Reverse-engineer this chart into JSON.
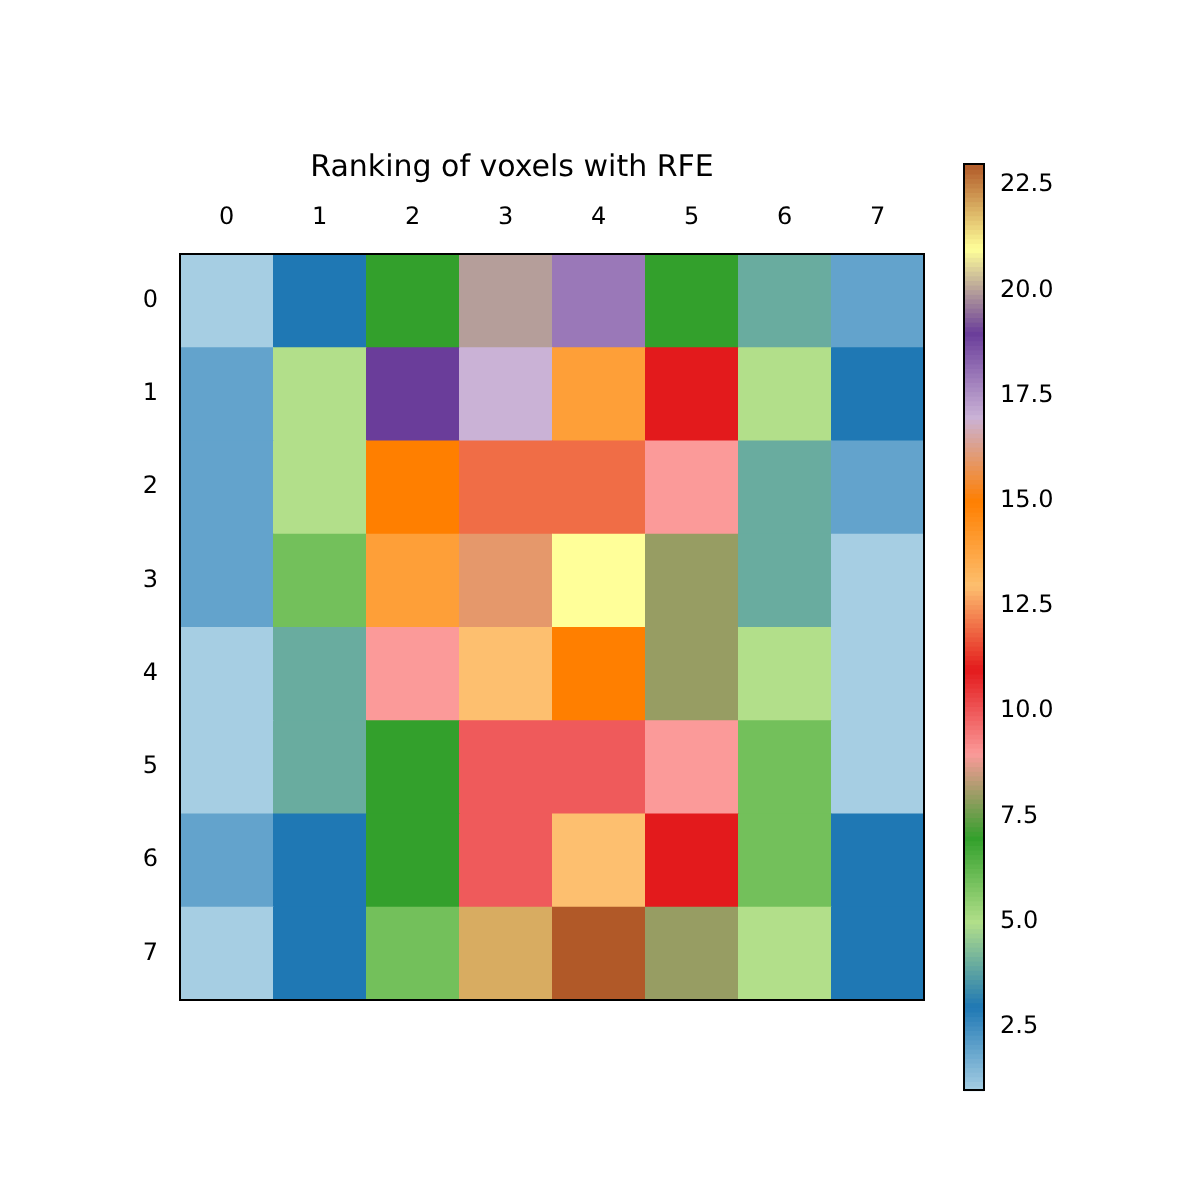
{
  "chart_data": {
    "type": "heatmap",
    "title": "Ranking of voxels with RFE",
    "categories": [
      "0",
      "1",
      "2",
      "3",
      "4",
      "5",
      "6",
      "7"
    ],
    "y_categories": [
      "0",
      "1",
      "2",
      "3",
      "4",
      "5",
      "6",
      "7"
    ],
    "cells": [
      [
        1,
        3,
        7,
        20,
        18,
        7,
        4,
        2
      ],
      [
        2,
        5,
        19,
        17,
        14,
        11,
        5,
        3
      ],
      [
        2,
        5,
        15,
        12,
        12,
        9,
        4,
        2
      ],
      [
        2,
        6,
        14,
        16,
        21,
        8,
        4,
        1
      ],
      [
        1,
        4,
        9,
        13,
        15,
        8,
        5,
        1
      ],
      [
        1,
        4,
        7,
        10,
        10,
        9,
        6,
        1
      ],
      [
        2,
        3,
        7,
        10,
        13,
        11,
        6,
        3
      ],
      [
        1,
        3,
        6,
        22,
        23,
        8,
        5,
        3
      ]
    ],
    "clim": [
      1,
      23
    ],
    "cticks": [
      2.5,
      {
        "value": 5,
        "label": "5.0"
      },
      7.5,
      {
        "value": 10,
        "label": "10.0"
      },
      12.5,
      {
        "value": 15,
        "label": "15.0"
      },
      17.5,
      {
        "value": 20,
        "label": "20.0"
      },
      22.5
    ]
  }
}
